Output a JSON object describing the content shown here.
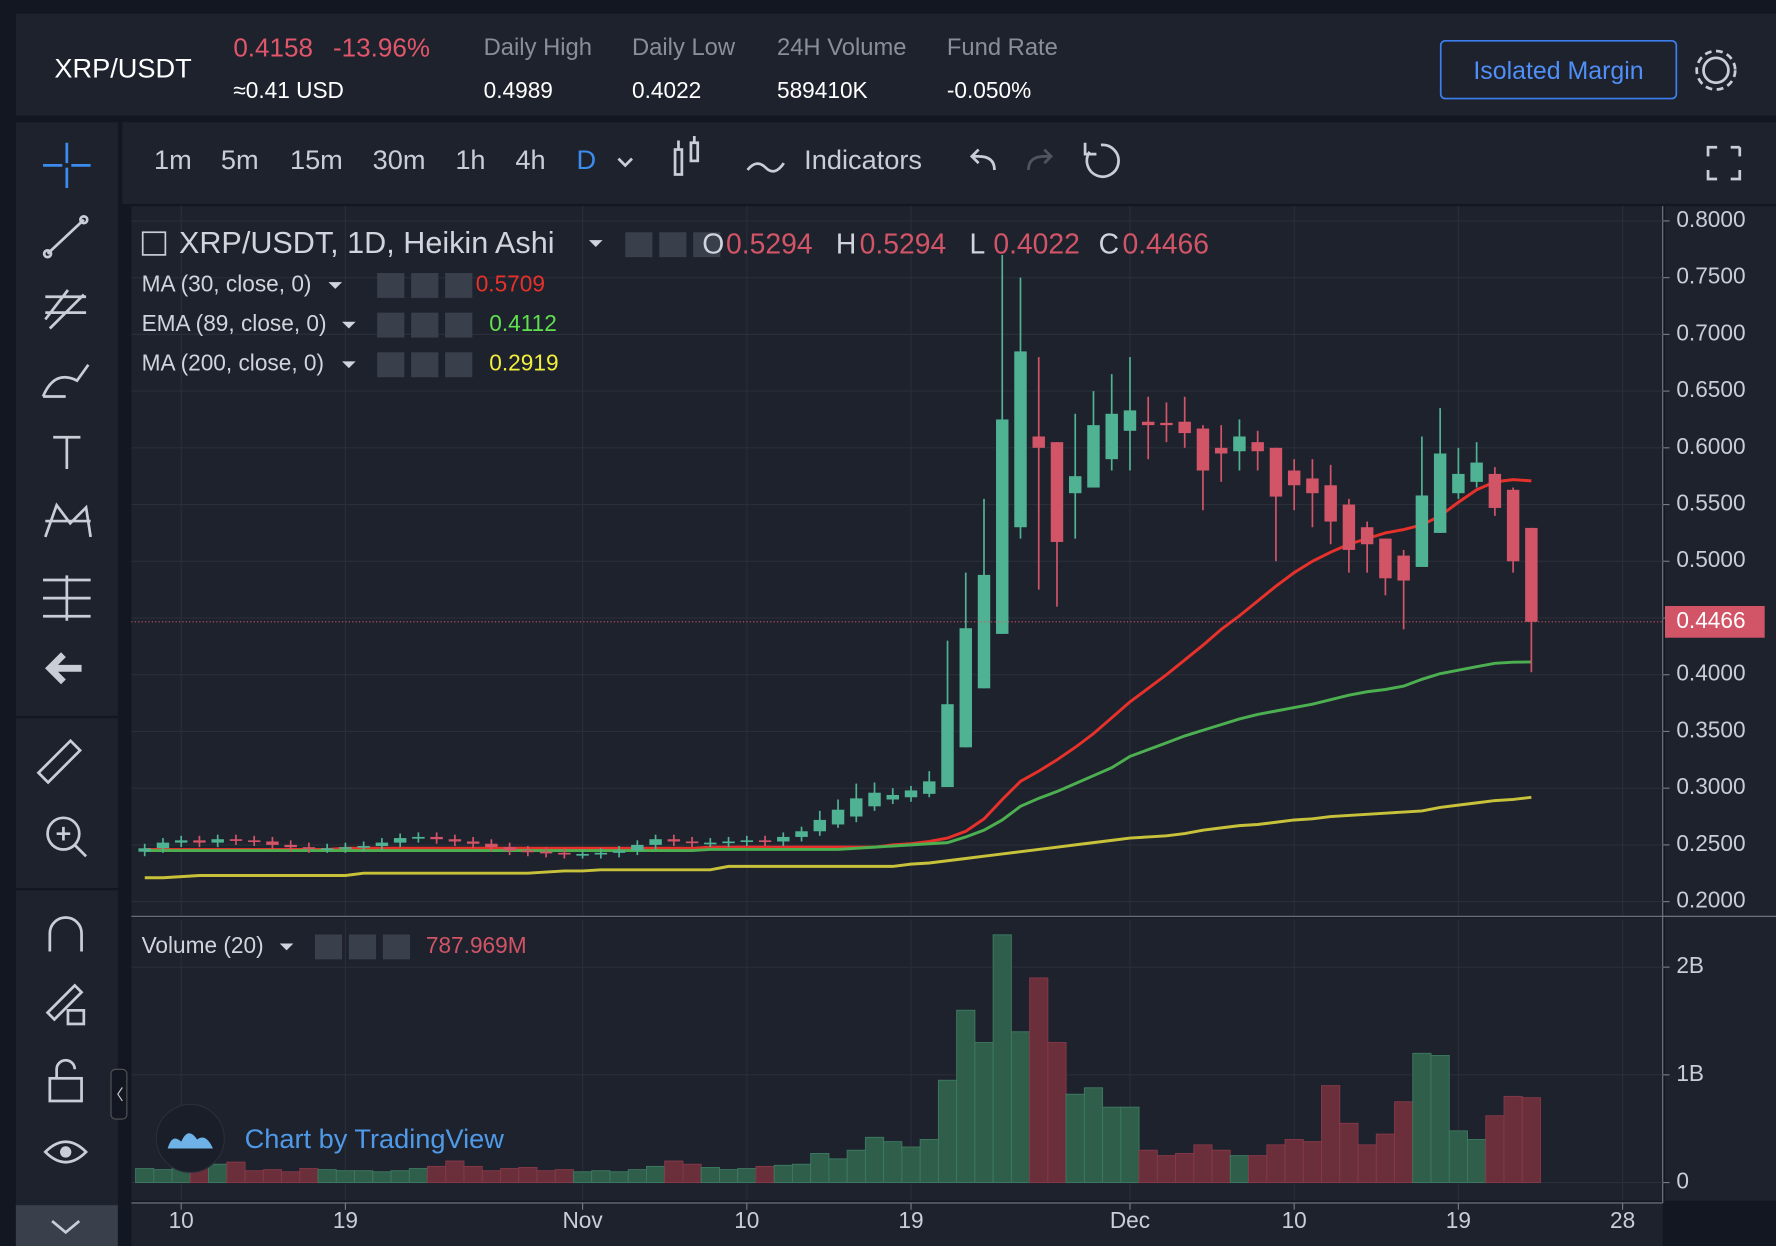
{
  "header": {
    "pair": "XRP/USDT",
    "price": "0.4158",
    "change": "-13.96%",
    "usd": "≈0.41 USD",
    "stats": [
      {
        "label": "Daily High",
        "value": "0.4989"
      },
      {
        "label": "Daily Low",
        "value": "0.4022"
      },
      {
        "label": "24H Volume",
        "value": "589410K"
      },
      {
        "label": "Fund Rate",
        "value": "-0.050%"
      }
    ],
    "button": "Isolated Margin"
  },
  "toolbar": {
    "intervals": [
      "1m",
      "5m",
      "15m",
      "30m",
      "1h",
      "4h",
      "D"
    ],
    "indicators": "Indicators"
  },
  "watermark": "Chart by TradingView",
  "chart_data": {
    "type": "candlestick",
    "title": "XRP/USDT, 1D, Heikin Ashi",
    "ohlc_labels": [
      "O",
      "H",
      "L",
      "C"
    ],
    "up_color": "#4fb393",
    "down_color": "#d15467",
    "xlim": [
      -0.73,
      83.2
    ],
    "xticks": [
      {
        "value": 2,
        "label": "10"
      },
      {
        "value": 11,
        "label": "19"
      },
      {
        "value": 24,
        "label": "Nov"
      },
      {
        "value": 33,
        "label": "10"
      },
      {
        "value": 42,
        "label": "19"
      },
      {
        "value": 54,
        "label": "Dec"
      },
      {
        "value": 63,
        "label": "10"
      },
      {
        "value": 72,
        "label": "19"
      },
      {
        "value": 81,
        "label": "28"
      }
    ],
    "ylim": [
      0.188,
      0.813
    ],
    "yticks": [
      {
        "value": 0.8,
        "label": "0.8000"
      },
      {
        "value": 0.75,
        "label": "0.7500"
      },
      {
        "value": 0.7,
        "label": "0.7000"
      },
      {
        "value": 0.65,
        "label": "0.6500"
      },
      {
        "value": 0.6,
        "label": "0.6000"
      },
      {
        "value": 0.55,
        "label": "0.5500"
      },
      {
        "value": 0.5,
        "label": "0.5000"
      },
      {
        "value": 0.45,
        "label": "0.4500"
      },
      {
        "value": 0.4,
        "label": "0.4000"
      },
      {
        "value": 0.35,
        "label": "0.3500"
      },
      {
        "value": 0.3,
        "label": "0.3000"
      },
      {
        "value": 0.25,
        "label": "0.2500"
      },
      {
        "value": 0.2,
        "label": "0.2000"
      }
    ],
    "grid": true,
    "candles": {
      "open": [
        0.244,
        0.247,
        0.252,
        0.254,
        0.252,
        0.255,
        0.254,
        0.253,
        0.25,
        0.248,
        0.247,
        0.247,
        0.248,
        0.249,
        0.252,
        0.256,
        0.257,
        0.255,
        0.253,
        0.251,
        0.248,
        0.245,
        0.244,
        0.243,
        0.242,
        0.242,
        0.243,
        0.245,
        0.25,
        0.255,
        0.253,
        0.252,
        0.252,
        0.253,
        0.254,
        0.253,
        0.257,
        0.262,
        0.268,
        0.275,
        0.284,
        0.29,
        0.292,
        0.295,
        0.301,
        0.336,
        0.388,
        0.436,
        0.53,
        0.61,
        0.605,
        0.56,
        0.565,
        0.59,
        0.615,
        0.623,
        0.622,
        0.623,
        0.617,
        0.6,
        0.597,
        0.605,
        0.6,
        0.58,
        0.573,
        0.567,
        0.55,
        0.53,
        0.52,
        0.505,
        0.495,
        0.525,
        0.56,
        0.57,
        0.577,
        0.563,
        0.5294
      ],
      "high": [
        0.251,
        0.256,
        0.258,
        0.258,
        0.259,
        0.259,
        0.258,
        0.257,
        0.254,
        0.252,
        0.251,
        0.252,
        0.253,
        0.256,
        0.26,
        0.261,
        0.261,
        0.259,
        0.257,
        0.255,
        0.252,
        0.249,
        0.248,
        0.247,
        0.246,
        0.247,
        0.249,
        0.254,
        0.259,
        0.259,
        0.257,
        0.256,
        0.257,
        0.258,
        0.258,
        0.261,
        0.266,
        0.28,
        0.29,
        0.304,
        0.305,
        0.3,
        0.302,
        0.315,
        0.43,
        0.49,
        0.555,
        0.77,
        0.75,
        0.68,
        0.605,
        0.63,
        0.65,
        0.665,
        0.68,
        0.645,
        0.64,
        0.645,
        0.62,
        0.62,
        0.625,
        0.615,
        0.6,
        0.59,
        0.59,
        0.585,
        0.555,
        0.535,
        0.52,
        0.51,
        0.61,
        0.635,
        0.6,
        0.605,
        0.583,
        0.565,
        0.5294
      ],
      "low": [
        0.24,
        0.243,
        0.248,
        0.248,
        0.248,
        0.25,
        0.249,
        0.246,
        0.244,
        0.243,
        0.243,
        0.243,
        0.244,
        0.245,
        0.248,
        0.252,
        0.251,
        0.249,
        0.247,
        0.244,
        0.241,
        0.24,
        0.239,
        0.238,
        0.238,
        0.238,
        0.239,
        0.241,
        0.246,
        0.249,
        0.248,
        0.248,
        0.248,
        0.249,
        0.249,
        0.249,
        0.253,
        0.258,
        0.265,
        0.27,
        0.28,
        0.286,
        0.288,
        0.292,
        0.301,
        0.336,
        0.388,
        0.436,
        0.52,
        0.475,
        0.46,
        0.52,
        0.565,
        0.58,
        0.58,
        0.59,
        0.605,
        0.6,
        0.545,
        0.57,
        0.58,
        0.58,
        0.5,
        0.545,
        0.53,
        0.515,
        0.49,
        0.49,
        0.47,
        0.44,
        0.495,
        0.525,
        0.555,
        0.565,
        0.54,
        0.49,
        0.4022
      ],
      "close": [
        0.247,
        0.252,
        0.254,
        0.252,
        0.255,
        0.254,
        0.253,
        0.25,
        0.248,
        0.247,
        0.247,
        0.248,
        0.249,
        0.252,
        0.256,
        0.257,
        0.255,
        0.253,
        0.251,
        0.248,
        0.245,
        0.244,
        0.243,
        0.242,
        0.242,
        0.243,
        0.245,
        0.25,
        0.255,
        0.253,
        0.252,
        0.252,
        0.253,
        0.254,
        0.253,
        0.257,
        0.262,
        0.272,
        0.281,
        0.291,
        0.296,
        0.294,
        0.298,
        0.306,
        0.374,
        0.441,
        0.488,
        0.625,
        0.685,
        0.6,
        0.517,
        0.575,
        0.62,
        0.63,
        0.633,
        0.62,
        0.62,
        0.613,
        0.58,
        0.595,
        0.61,
        0.597,
        0.557,
        0.567,
        0.56,
        0.535,
        0.51,
        0.515,
        0.485,
        0.483,
        0.558,
        0.595,
        0.577,
        0.587,
        0.547,
        0.5,
        0.4466
      ]
    },
    "series": [
      {
        "name": "MA (30, close, 0)",
        "color": "#e8312a",
        "values": [
          0.246,
          0.246,
          0.246,
          0.246,
          0.246,
          0.246,
          0.246,
          0.246,
          0.246,
          0.246,
          0.246,
          0.247,
          0.247,
          0.247,
          0.247,
          0.247,
          0.247,
          0.247,
          0.247,
          0.247,
          0.247,
          0.247,
          0.247,
          0.247,
          0.247,
          0.247,
          0.247,
          0.247,
          0.247,
          0.247,
          0.247,
          0.248,
          0.248,
          0.248,
          0.248,
          0.248,
          0.248,
          0.248,
          0.248,
          0.248,
          0.248,
          0.25,
          0.251,
          0.253,
          0.256,
          0.262,
          0.273,
          0.29,
          0.306,
          0.315,
          0.325,
          0.336,
          0.348,
          0.362,
          0.376,
          0.388,
          0.4,
          0.413,
          0.426,
          0.44,
          0.452,
          0.465,
          0.478,
          0.49,
          0.5,
          0.508,
          0.515,
          0.52,
          0.525,
          0.528,
          0.532,
          0.54,
          0.552,
          0.563,
          0.57,
          0.572,
          0.5709
        ]
      },
      {
        "name": "EMA (89, close, 0)",
        "color": "#4caf50",
        "values": [
          0.245,
          0.245,
          0.245,
          0.245,
          0.245,
          0.245,
          0.245,
          0.245,
          0.245,
          0.245,
          0.245,
          0.245,
          0.245,
          0.245,
          0.245,
          0.245,
          0.245,
          0.245,
          0.245,
          0.245,
          0.245,
          0.245,
          0.245,
          0.245,
          0.245,
          0.245,
          0.245,
          0.245,
          0.245,
          0.245,
          0.245,
          0.246,
          0.246,
          0.246,
          0.246,
          0.246,
          0.246,
          0.246,
          0.246,
          0.247,
          0.248,
          0.249,
          0.25,
          0.251,
          0.252,
          0.257,
          0.263,
          0.272,
          0.284,
          0.291,
          0.297,
          0.304,
          0.311,
          0.318,
          0.328,
          0.334,
          0.34,
          0.346,
          0.351,
          0.356,
          0.361,
          0.365,
          0.368,
          0.371,
          0.374,
          0.378,
          0.382,
          0.385,
          0.387,
          0.39,
          0.396,
          0.401,
          0.404,
          0.407,
          0.41,
          0.411,
          0.4112
        ]
      },
      {
        "name": "MA (200, close, 0)",
        "color": "#c8c23a",
        "values": [
          0.221,
          0.221,
          0.222,
          0.223,
          0.223,
          0.223,
          0.223,
          0.223,
          0.223,
          0.223,
          0.223,
          0.223,
          0.225,
          0.225,
          0.225,
          0.225,
          0.225,
          0.225,
          0.225,
          0.225,
          0.225,
          0.225,
          0.226,
          0.227,
          0.227,
          0.228,
          0.228,
          0.228,
          0.228,
          0.228,
          0.228,
          0.228,
          0.231,
          0.231,
          0.231,
          0.231,
          0.231,
          0.231,
          0.231,
          0.231,
          0.231,
          0.231,
          0.233,
          0.234,
          0.236,
          0.238,
          0.24,
          0.242,
          0.244,
          0.246,
          0.248,
          0.25,
          0.252,
          0.254,
          0.256,
          0.257,
          0.258,
          0.26,
          0.263,
          0.265,
          0.267,
          0.268,
          0.27,
          0.272,
          0.273,
          0.275,
          0.276,
          0.277,
          0.278,
          0.279,
          0.28,
          0.283,
          0.285,
          0.287,
          0.289,
          0.29,
          0.2919
        ]
      }
    ],
    "value_colors": [
      "#e8312a",
      "#5ee04f",
      "#f2ef3c"
    ],
    "volume": {
      "name": "Volume (20)",
      "last_value_label": "787.969M",
      "ylim": [
        -168000000,
        2440000000
      ],
      "yticks": [
        {
          "value": 2000000000,
          "label": "2B"
        },
        {
          "value": 1000000000,
          "label": "1B"
        },
        0
      ],
      "values": [
        130000000,
        120000000,
        140000000,
        150000000,
        170000000,
        190000000,
        110000000,
        120000000,
        100000000,
        130000000,
        120000000,
        110000000,
        110000000,
        100000000,
        110000000,
        130000000,
        150000000,
        200000000,
        150000000,
        110000000,
        130000000,
        140000000,
        110000000,
        120000000,
        100000000,
        110000000,
        100000000,
        120000000,
        150000000,
        200000000,
        170000000,
        140000000,
        120000000,
        130000000,
        150000000,
        160000000,
        170000000,
        270000000,
        220000000,
        300000000,
        420000000,
        380000000,
        330000000,
        400000000,
        950000000,
        1600000000,
        1300000000,
        2300000000,
        1400000000,
        1900000000,
        1300000000,
        820000000,
        880000000,
        700000000,
        700000000,
        300000000,
        250000000,
        270000000,
        350000000,
        300000000,
        250000000,
        250000000,
        350000000,
        400000000,
        380000000,
        900000000,
        550000000,
        350000000,
        450000000,
        750000000,
        1200000000,
        1180000000,
        480000000,
        400000000,
        620000000,
        800000000,
        787969000
      ]
    }
  }
}
